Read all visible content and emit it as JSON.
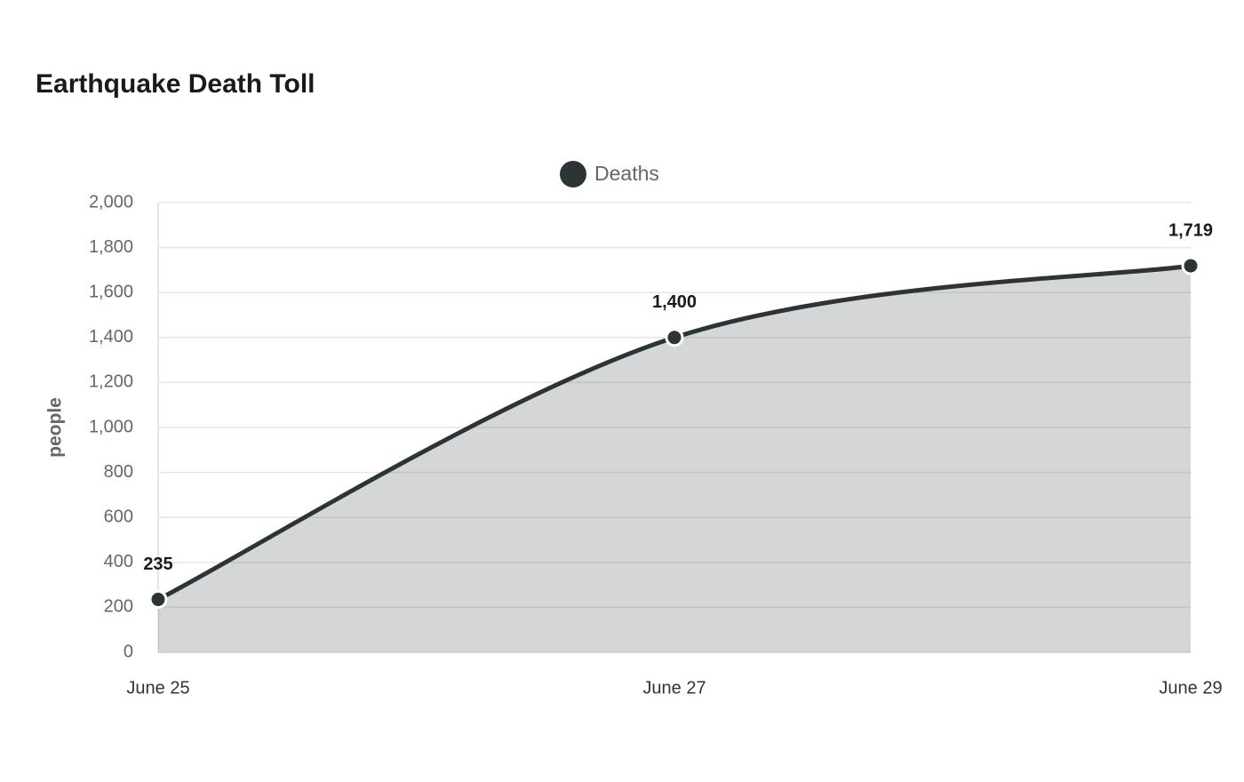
{
  "chart_data": {
    "type": "area",
    "title": "Earthquake Death Toll",
    "y_label": "people",
    "categories": [
      "June 25",
      "June 27",
      "June 29"
    ],
    "series": [
      {
        "name": "Deaths",
        "color": "#2d3436",
        "values": [
          235,
          1400,
          1719
        ],
        "value_labels": [
          "235",
          "1,400",
          "1,719"
        ]
      }
    ],
    "ylim": [
      0,
      2000
    ],
    "yticks": [
      0,
      200,
      400,
      600,
      800,
      {
        "value": 1000,
        "label": "1,000"
      },
      {
        "value": 1200,
        "label": "1,200"
      },
      {
        "value": 1400,
        "label": "1,400"
      },
      {
        "value": 1600,
        "label": "1,600"
      },
      {
        "value": 1800,
        "label": "1,800"
      },
      {
        "value": 2000,
        "label": "2,000"
      }
    ],
    "grid": true,
    "legend": "top"
  }
}
